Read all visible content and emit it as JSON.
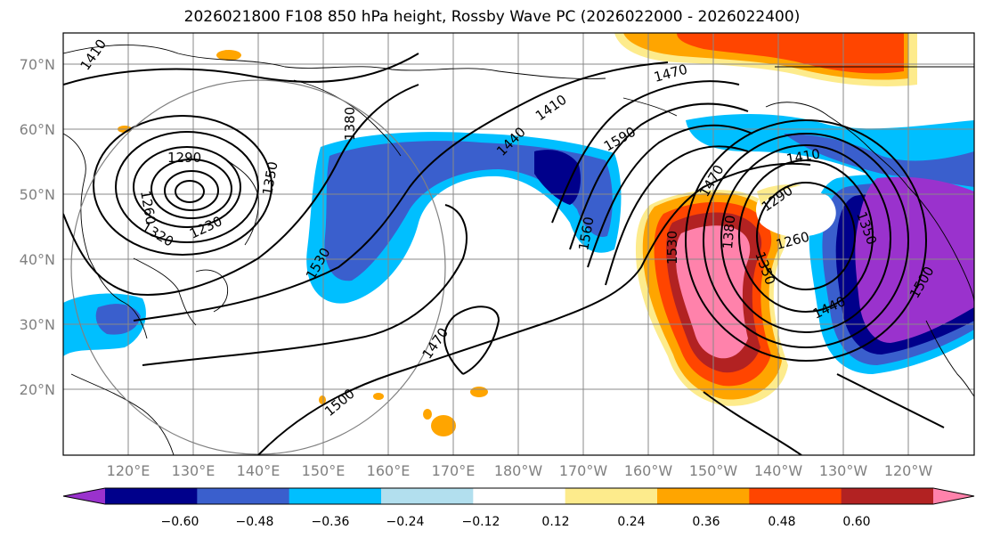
{
  "title": "2026021800 F108 850 hPa height, Rossby Wave PC (2026022000 - 2026022400)",
  "lat_labels": [
    "70°N",
    "60°N",
    "50°N",
    "40°N",
    "30°N",
    "20°N"
  ],
  "lon_labels": [
    "120°E",
    "130°E",
    "140°E",
    "150°E",
    "160°E",
    "170°E",
    "180°W",
    "170°W",
    "160°W",
    "150°W",
    "140°W",
    "130°W",
    "120°W"
  ],
  "colorbar": {
    "ticks": [
      "−0.60",
      "−0.48",
      "−0.36",
      "−0.24",
      "−0.12",
      "0.12",
      "0.24",
      "0.36",
      "0.48",
      "0.60"
    ],
    "colors": [
      "#9a32cd",
      "#00008b",
      "#3a5fcd",
      "#00bfff",
      "#b2dfee",
      "#ffffff",
      "#fdeb8c",
      "#ffa500",
      "#ff4500",
      "#b22222",
      "#ff82ab"
    ]
  },
  "contour_labels": [
    "1410",
    "1380",
    "1290",
    "1260",
    "1320",
    "1230",
    "1350",
    "1530",
    "1500",
    "1470",
    "1440",
    "1590",
    "1560",
    "1410",
    "1470",
    "1530",
    "1380",
    "1350",
    "1290",
    "1260",
    "1410",
    "1500",
    "1440",
    "1350",
    "1470"
  ]
}
